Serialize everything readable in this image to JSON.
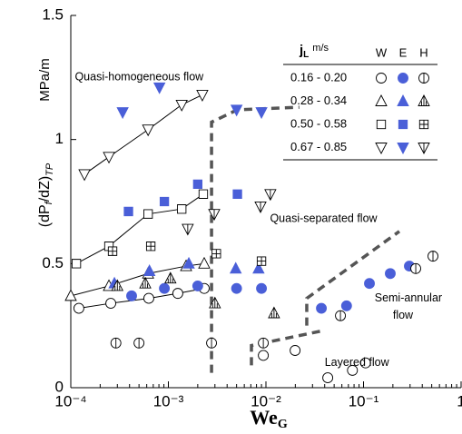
{
  "chart_data": {
    "type": "scatter",
    "x_label": [
      "We",
      "G"
    ],
    "y_label": [
      "(dP",
      "f",
      "/dZ)",
      "TP"
    ],
    "y_unit": "MPa/m",
    "xlim": [
      0.0001,
      1
    ],
    "ylim": [
      0,
      1.5
    ],
    "log_x": true,
    "minor_ticks": true,
    "xticks": [
      {
        "value": 0.0001,
        "label": "10⁻⁴"
      },
      {
        "value": 0.001,
        "label": "10⁻³"
      },
      {
        "value": 0.01,
        "label": "10⁻²"
      },
      {
        "value": 0.1,
        "label": "10⁻¹"
      },
      1
    ],
    "yticks": [
      0,
      0.5,
      1,
      1.5
    ],
    "fill_color": "#4a5fd8",
    "legend": {
      "title": [
        "j",
        "L",
        "m/s"
      ],
      "corner": "top-right",
      "columns": [
        {
          "label": "W",
          "style": "open"
        },
        {
          "label": "E",
          "style": "filled"
        },
        {
          "label": "H",
          "style": "hatched"
        }
      ]
    },
    "groups": [
      {
        "name": "0.16 - 0.20",
        "marker": "circle",
        "series": [
          {
            "style": "open",
            "line": true,
            "x": [
              0.000121,
              0.000257,
              0.00063,
              0.00125,
              0.00233
            ],
            "y": [
              0.32,
              0.34,
              0.36,
              0.38,
              0.4
            ]
          },
          {
            "style": "open",
            "x": [
              0.0094,
              0.0199,
              0.043,
              0.077,
              0.105
            ],
            "y": [
              0.13,
              0.15,
              0.04,
              0.07,
              0.1
            ]
          },
          {
            "style": "filled",
            "x": [
              0.00042,
              0.00091,
              0.002,
              0.005,
              0.009,
              0.037,
              0.067,
              0.115,
              0.188,
              0.295
            ],
            "y": [
              0.37,
              0.4,
              0.41,
              0.4,
              0.4,
              0.32,
              0.33,
              0.42,
              0.46,
              0.49
            ]
          },
          {
            "style": "hatched",
            "x": [
              0.00029,
              0.0005,
              0.00277,
              0.0094,
              0.058,
              0.343,
              0.515
            ],
            "y": [
              0.18,
              0.18,
              0.18,
              0.18,
              0.29,
              0.48,
              0.53
            ]
          }
        ]
      },
      {
        "name": "0.28 - 0.34",
        "marker": "triangle-up",
        "series": [
          {
            "style": "open",
            "line": true,
            "x": [
              0.0001,
              0.000246,
              0.00062,
              0.00152,
              0.00233
            ],
            "y": [
              0.37,
              0.41,
              0.46,
              0.49,
              0.5
            ]
          },
          {
            "style": "filled",
            "x": [
              0.00028,
              0.00064,
              0.00162,
              0.0049,
              0.0084
            ],
            "y": [
              0.42,
              0.47,
              0.5,
              0.48,
              0.48
            ]
          },
          {
            "style": "hatched",
            "x": [
              0.0003,
              0.00058,
              0.00105,
              0.003,
              0.0121
            ],
            "y": [
              0.41,
              0.42,
              0.44,
              0.34,
              0.3
            ]
          }
        ]
      },
      {
        "name": "0.50 - 0.58",
        "marker": "square",
        "series": [
          {
            "style": "open",
            "line": true,
            "x": [
              0.000114,
              0.000246,
              0.00062,
              0.00137,
              0.00228
            ],
            "y": [
              0.5,
              0.57,
              0.7,
              0.72,
              0.78
            ]
          },
          {
            "style": "filled",
            "x": [
              0.00039,
              0.00091,
              0.002,
              0.0051
            ],
            "y": [
              0.71,
              0.75,
              0.82,
              0.78
            ]
          },
          {
            "style": "hatched",
            "x": [
              0.000268,
              0.00066,
              0.0031,
              0.009
            ],
            "y": [
              0.55,
              0.57,
              0.54,
              0.51
            ]
          }
        ]
      },
      {
        "name": "0.67 - 0.85",
        "marker": "triangle-down",
        "series": [
          {
            "style": "open",
            "line": true,
            "x": [
              0.000138,
              0.000246,
              0.00062,
              0.00137,
              0.00223
            ],
            "y": [
              0.86,
              0.93,
              1.04,
              1.14,
              1.18
            ]
          },
          {
            "style": "filled",
            "x": [
              0.00034,
              0.00081,
              0.005,
              0.009
            ],
            "y": [
              1.11,
              1.21,
              1.12,
              1.11
            ]
          },
          {
            "style": "hatched",
            "x": [
              0.00158,
              0.00295,
              0.0088,
              0.0111
            ],
            "y": [
              0.64,
              0.7,
              0.73,
              0.78
            ]
          }
        ]
      }
    ],
    "boundaries": [
      {
        "x": [
          0.00277,
          0.00277,
          0.0051,
          0.022
        ],
        "y": [
          0.06,
          1.07,
          1.12,
          1.13
        ]
      },
      {
        "x": [
          0.0262,
          0.0262,
          0.233
        ],
        "y": [
          0.25,
          0.36,
          0.63
        ]
      },
      {
        "x": [
          0.0071,
          0.0071,
          0.0386
        ],
        "y": [
          0.09,
          0.17,
          0.23
        ]
      }
    ],
    "annotations": [
      {
        "text": "Quasi-homogeneous flow",
        "x": 0.00011,
        "y": 1.25
      },
      {
        "text": "Quasi-separated flow",
        "x": 0.011,
        "y": 0.68
      },
      {
        "text": "Semi-annular",
        "x": 0.13,
        "y": 0.36
      },
      {
        "text": "flow",
        "x": 0.2,
        "y": 0.29
      },
      {
        "text": "Layered flow",
        "x": 0.04,
        "y": 0.1
      }
    ]
  }
}
